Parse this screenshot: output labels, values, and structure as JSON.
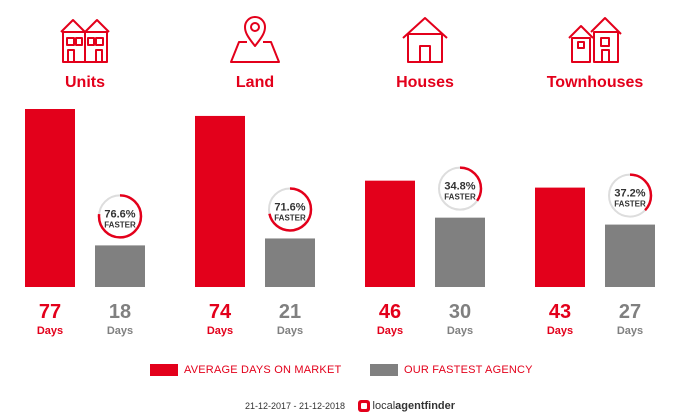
{
  "chart_data": {
    "type": "bar",
    "categories": [
      "Units",
      "Land",
      "Houses",
      "Townhouses"
    ],
    "series": [
      {
        "name": "AVERAGE DAYS ON MARKET",
        "values": [
          77,
          74,
          46,
          43
        ],
        "color": "#e3001b"
      },
      {
        "name": "OUR FASTEST AGENCY",
        "values": [
          18,
          21,
          30,
          27
        ],
        "color": "#808080"
      }
    ],
    "faster_percent": [
      76.6,
      71.6,
      34.8,
      37.2
    ],
    "faster_labels": [
      "76.6%",
      "71.6%",
      "34.8%",
      "37.2%"
    ],
    "faster_word": "FASTER",
    "unit_label": "Days",
    "icons": [
      "units-icon",
      "land-icon",
      "houses-icon",
      "townhouses-icon"
    ],
    "ylim": [
      0,
      77
    ]
  },
  "legend": {
    "red_label": "AVERAGE DAYS ON MARKET",
    "grey_label": "OUR FASTEST AGENCY"
  },
  "footer": {
    "date_range": "21-12-2017 - 21-12-2018",
    "brand_regular": "local",
    "brand_bold": "agentfinder"
  },
  "colors": {
    "accent": "#e3001b",
    "grey": "#808080",
    "ring_track": "#dddddd"
  }
}
